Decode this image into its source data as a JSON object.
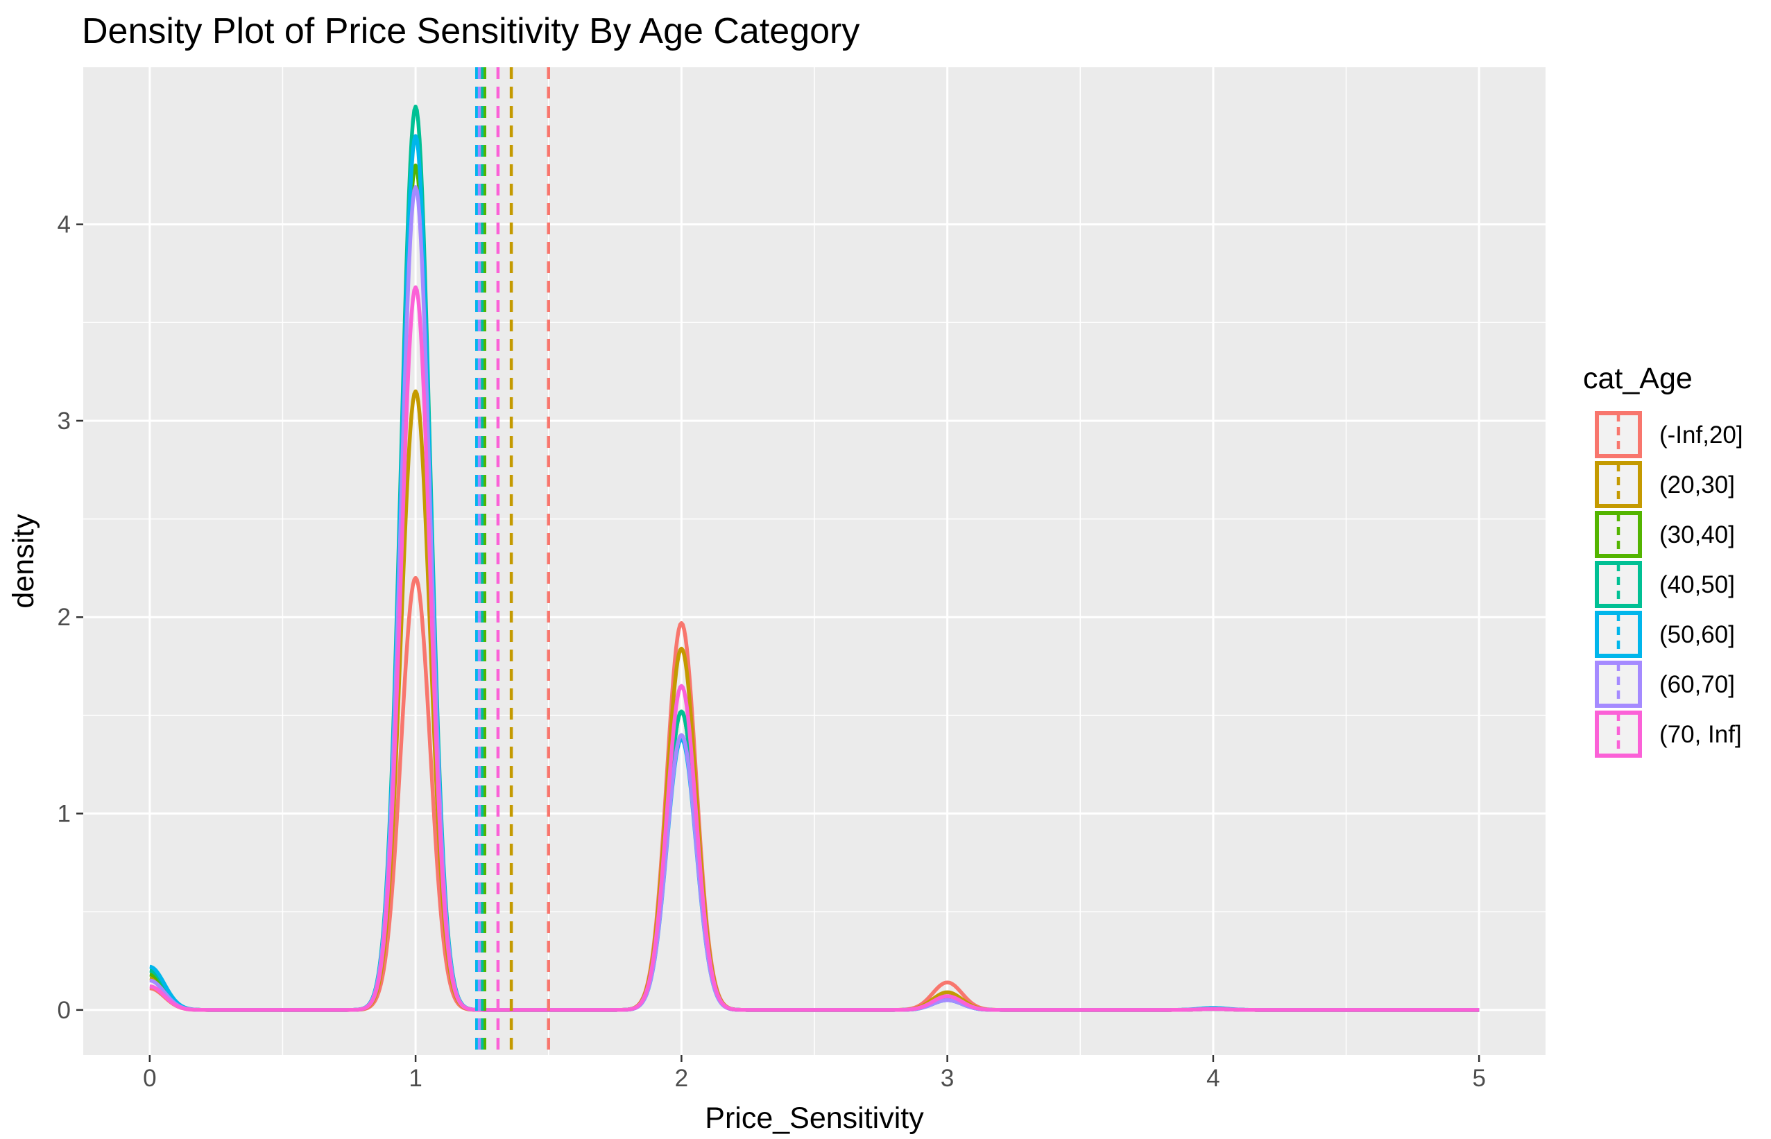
{
  "chart_data": {
    "type": "line",
    "subtype": "density",
    "title": "Density Plot of Price Sensitivity By Age Category",
    "xlabel": "Price_Sensitivity",
    "ylabel": "density",
    "xlim": [
      -0.25,
      5.25
    ],
    "ylim": [
      -0.23,
      4.8
    ],
    "x_ticks": [
      0,
      1,
      2,
      3,
      4,
      5
    ],
    "y_ticks": [
      0,
      1,
      2,
      3,
      4
    ],
    "x_tick_labels": [
      "0",
      "1",
      "2",
      "3",
      "4",
      "5"
    ],
    "y_tick_labels": [
      "0",
      "1",
      "2",
      "3",
      "4"
    ],
    "grid": true,
    "background": "#ebebeb",
    "legend": {
      "title": "cat_Age",
      "position": "right"
    },
    "bandwidth": 0.055,
    "series": [
      {
        "name": "(-Inf,20]",
        "color": "#F8766D",
        "peaks": {
          "0": 0.11,
          "1": 2.2,
          "2": 1.97,
          "3": 0.14,
          "4": 0.005
        },
        "mean": 1.5
      },
      {
        "name": "(20,30]",
        "color": "#C49A00",
        "peaks": {
          "0": 0.16,
          "1": 3.15,
          "2": 1.84,
          "3": 0.09,
          "4": 0.005
        },
        "mean": 1.36
      },
      {
        "name": "(30,40]",
        "color": "#53B400",
        "peaks": {
          "0": 0.18,
          "1": 4.3,
          "2": 1.52,
          "3": 0.06,
          "4": 0.005
        },
        "mean": 1.26
      },
      {
        "name": "(40,50]",
        "color": "#00C094",
        "peaks": {
          "0": 0.2,
          "1": 4.6,
          "2": 1.52,
          "3": 0.05,
          "4": 0.005
        },
        "mean": 1.25
      },
      {
        "name": "(50,60]",
        "color": "#00B6EB",
        "peaks": {
          "0": 0.22,
          "1": 4.45,
          "2": 1.38,
          "3": 0.05,
          "4": 0.01
        },
        "mean": 1.23
      },
      {
        "name": "(60,70]",
        "color": "#A58AFF",
        "peaks": {
          "0": 0.15,
          "1": 4.19,
          "2": 1.4,
          "3": 0.05,
          "4": 0.005
        },
        "mean": 1.24
      },
      {
        "name": "(70, Inf]",
        "color": "#FB61D7",
        "peaks": {
          "0": 0.12,
          "1": 3.68,
          "2": 1.65,
          "3": 0.07,
          "4": 0.005
        },
        "mean": 1.31
      }
    ]
  }
}
